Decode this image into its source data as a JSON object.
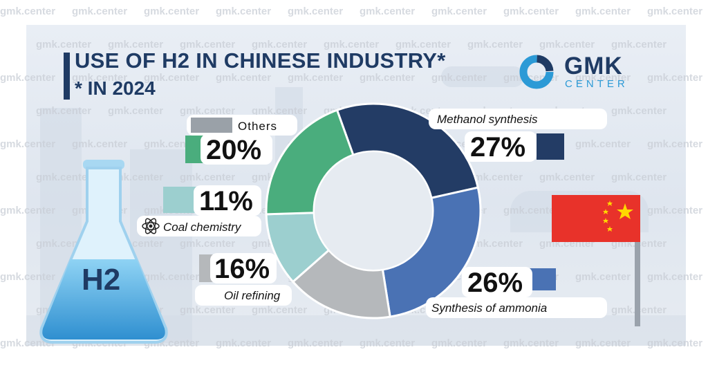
{
  "title": "USE OF H2 IN CHINESE INDUSTRY*",
  "subtitle": "* IN 2024",
  "logo": {
    "name": "GMK",
    "sub": "CENTER"
  },
  "watermark": "gmk.center",
  "flask_label": "H2",
  "colors": {
    "title": "#1f3b64",
    "methanol": "#233c65",
    "ammonia": "#4a72b4",
    "oil": "#b5b8bb",
    "coal": "#9ccfcf",
    "others": "#4aad7d",
    "flag_red": "#e8322a",
    "flag_star": "#ffd800",
    "logo_accent": "#2c9ad6"
  },
  "chart_data": {
    "type": "pie",
    "donut": true,
    "slices": [
      {
        "label": "Methanol synthesis",
        "value": 27,
        "value_label": "27%",
        "color": "#233c65"
      },
      {
        "label": "Synthesis of ammonia",
        "value": 26,
        "value_label": "26%",
        "color": "#4a72b4"
      },
      {
        "label": "Oil refining",
        "value": 16,
        "value_label": "16%",
        "color": "#b5b8bb"
      },
      {
        "label": "Coal chemistry",
        "value": 11,
        "value_label": "11%",
        "color": "#9ccfcf"
      },
      {
        "label": "Others",
        "value": 20,
        "value_label": "20%",
        "color": "#4aad7d"
      }
    ]
  }
}
